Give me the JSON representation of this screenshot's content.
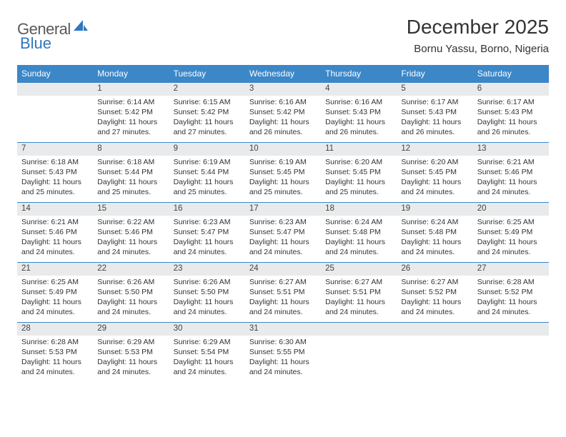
{
  "brand": {
    "part1": "General",
    "part2": "Blue"
  },
  "title": "December 2025",
  "location": "Bornu Yassu, Borno, Nigeria",
  "colors": {
    "header_bg": "#3b87c8",
    "header_text": "#ffffff",
    "daynum_bg": "#e9eaeb",
    "rule": "#3b87c8",
    "text": "#333333",
    "logo_gray": "#5a5a5a",
    "logo_blue": "#2f78bf"
  },
  "typography": {
    "title_fontsize": 28,
    "location_fontsize": 15,
    "weekday_fontsize": 12,
    "daynum_fontsize": 11.5,
    "body_fontsize": 10.5
  },
  "weekdays": [
    "Sunday",
    "Monday",
    "Tuesday",
    "Wednesday",
    "Thursday",
    "Friday",
    "Saturday"
  ],
  "weeks": [
    {
      "nums": [
        "",
        "1",
        "2",
        "3",
        "4",
        "5",
        "6"
      ],
      "cells": [
        null,
        {
          "sr": "Sunrise: 6:14 AM",
          "ss": "Sunset: 5:42 PM",
          "d1": "Daylight: 11 hours",
          "d2": "and 27 minutes."
        },
        {
          "sr": "Sunrise: 6:15 AM",
          "ss": "Sunset: 5:42 PM",
          "d1": "Daylight: 11 hours",
          "d2": "and 27 minutes."
        },
        {
          "sr": "Sunrise: 6:16 AM",
          "ss": "Sunset: 5:42 PM",
          "d1": "Daylight: 11 hours",
          "d2": "and 26 minutes."
        },
        {
          "sr": "Sunrise: 6:16 AM",
          "ss": "Sunset: 5:43 PM",
          "d1": "Daylight: 11 hours",
          "d2": "and 26 minutes."
        },
        {
          "sr": "Sunrise: 6:17 AM",
          "ss": "Sunset: 5:43 PM",
          "d1": "Daylight: 11 hours",
          "d2": "and 26 minutes."
        },
        {
          "sr": "Sunrise: 6:17 AM",
          "ss": "Sunset: 5:43 PM",
          "d1": "Daylight: 11 hours",
          "d2": "and 26 minutes."
        }
      ]
    },
    {
      "nums": [
        "7",
        "8",
        "9",
        "10",
        "11",
        "12",
        "13"
      ],
      "cells": [
        {
          "sr": "Sunrise: 6:18 AM",
          "ss": "Sunset: 5:43 PM",
          "d1": "Daylight: 11 hours",
          "d2": "and 25 minutes."
        },
        {
          "sr": "Sunrise: 6:18 AM",
          "ss": "Sunset: 5:44 PM",
          "d1": "Daylight: 11 hours",
          "d2": "and 25 minutes."
        },
        {
          "sr": "Sunrise: 6:19 AM",
          "ss": "Sunset: 5:44 PM",
          "d1": "Daylight: 11 hours",
          "d2": "and 25 minutes."
        },
        {
          "sr": "Sunrise: 6:19 AM",
          "ss": "Sunset: 5:45 PM",
          "d1": "Daylight: 11 hours",
          "d2": "and 25 minutes."
        },
        {
          "sr": "Sunrise: 6:20 AM",
          "ss": "Sunset: 5:45 PM",
          "d1": "Daylight: 11 hours",
          "d2": "and 25 minutes."
        },
        {
          "sr": "Sunrise: 6:20 AM",
          "ss": "Sunset: 5:45 PM",
          "d1": "Daylight: 11 hours",
          "d2": "and 24 minutes."
        },
        {
          "sr": "Sunrise: 6:21 AM",
          "ss": "Sunset: 5:46 PM",
          "d1": "Daylight: 11 hours",
          "d2": "and 24 minutes."
        }
      ]
    },
    {
      "nums": [
        "14",
        "15",
        "16",
        "17",
        "18",
        "19",
        "20"
      ],
      "cells": [
        {
          "sr": "Sunrise: 6:21 AM",
          "ss": "Sunset: 5:46 PM",
          "d1": "Daylight: 11 hours",
          "d2": "and 24 minutes."
        },
        {
          "sr": "Sunrise: 6:22 AM",
          "ss": "Sunset: 5:46 PM",
          "d1": "Daylight: 11 hours",
          "d2": "and 24 minutes."
        },
        {
          "sr": "Sunrise: 6:23 AM",
          "ss": "Sunset: 5:47 PM",
          "d1": "Daylight: 11 hours",
          "d2": "and 24 minutes."
        },
        {
          "sr": "Sunrise: 6:23 AM",
          "ss": "Sunset: 5:47 PM",
          "d1": "Daylight: 11 hours",
          "d2": "and 24 minutes."
        },
        {
          "sr": "Sunrise: 6:24 AM",
          "ss": "Sunset: 5:48 PM",
          "d1": "Daylight: 11 hours",
          "d2": "and 24 minutes."
        },
        {
          "sr": "Sunrise: 6:24 AM",
          "ss": "Sunset: 5:48 PM",
          "d1": "Daylight: 11 hours",
          "d2": "and 24 minutes."
        },
        {
          "sr": "Sunrise: 6:25 AM",
          "ss": "Sunset: 5:49 PM",
          "d1": "Daylight: 11 hours",
          "d2": "and 24 minutes."
        }
      ]
    },
    {
      "nums": [
        "21",
        "22",
        "23",
        "24",
        "25",
        "26",
        "27"
      ],
      "cells": [
        {
          "sr": "Sunrise: 6:25 AM",
          "ss": "Sunset: 5:49 PM",
          "d1": "Daylight: 11 hours",
          "d2": "and 24 minutes."
        },
        {
          "sr": "Sunrise: 6:26 AM",
          "ss": "Sunset: 5:50 PM",
          "d1": "Daylight: 11 hours",
          "d2": "and 24 minutes."
        },
        {
          "sr": "Sunrise: 6:26 AM",
          "ss": "Sunset: 5:50 PM",
          "d1": "Daylight: 11 hours",
          "d2": "and 24 minutes."
        },
        {
          "sr": "Sunrise: 6:27 AM",
          "ss": "Sunset: 5:51 PM",
          "d1": "Daylight: 11 hours",
          "d2": "and 24 minutes."
        },
        {
          "sr": "Sunrise: 6:27 AM",
          "ss": "Sunset: 5:51 PM",
          "d1": "Daylight: 11 hours",
          "d2": "and 24 minutes."
        },
        {
          "sr": "Sunrise: 6:27 AM",
          "ss": "Sunset: 5:52 PM",
          "d1": "Daylight: 11 hours",
          "d2": "and 24 minutes."
        },
        {
          "sr": "Sunrise: 6:28 AM",
          "ss": "Sunset: 5:52 PM",
          "d1": "Daylight: 11 hours",
          "d2": "and 24 minutes."
        }
      ]
    },
    {
      "nums": [
        "28",
        "29",
        "30",
        "31",
        "",
        "",
        ""
      ],
      "cells": [
        {
          "sr": "Sunrise: 6:28 AM",
          "ss": "Sunset: 5:53 PM",
          "d1": "Daylight: 11 hours",
          "d2": "and 24 minutes."
        },
        {
          "sr": "Sunrise: 6:29 AM",
          "ss": "Sunset: 5:53 PM",
          "d1": "Daylight: 11 hours",
          "d2": "and 24 minutes."
        },
        {
          "sr": "Sunrise: 6:29 AM",
          "ss": "Sunset: 5:54 PM",
          "d1": "Daylight: 11 hours",
          "d2": "and 24 minutes."
        },
        {
          "sr": "Sunrise: 6:30 AM",
          "ss": "Sunset: 5:55 PM",
          "d1": "Daylight: 11 hours",
          "d2": "and 24 minutes."
        },
        null,
        null,
        null
      ]
    }
  ]
}
